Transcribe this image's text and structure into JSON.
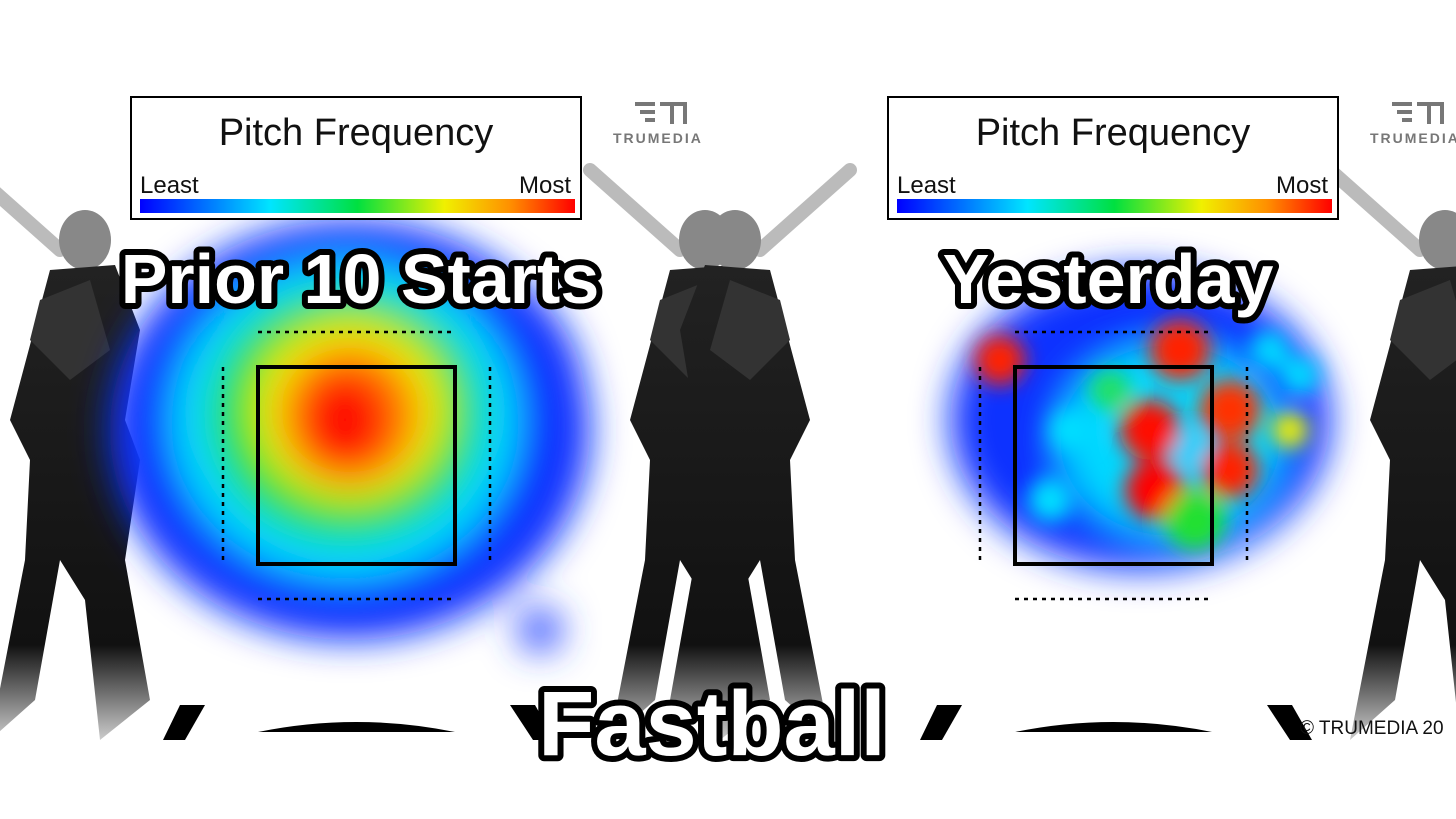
{
  "panels": [
    {
      "legend": {
        "title": "Pitch Frequency",
        "low": "Least",
        "high": "Most"
      },
      "logo": "TRUMEDIA",
      "label": "Prior 10 Starts"
    },
    {
      "legend": {
        "title": "Pitch Frequency",
        "low": "Least",
        "high": "Most"
      },
      "logo": "TRUMEDIA",
      "label": "Yesterday",
      "copyright": "© TRUMEDIA 20"
    }
  ],
  "caption": "Fastball"
}
